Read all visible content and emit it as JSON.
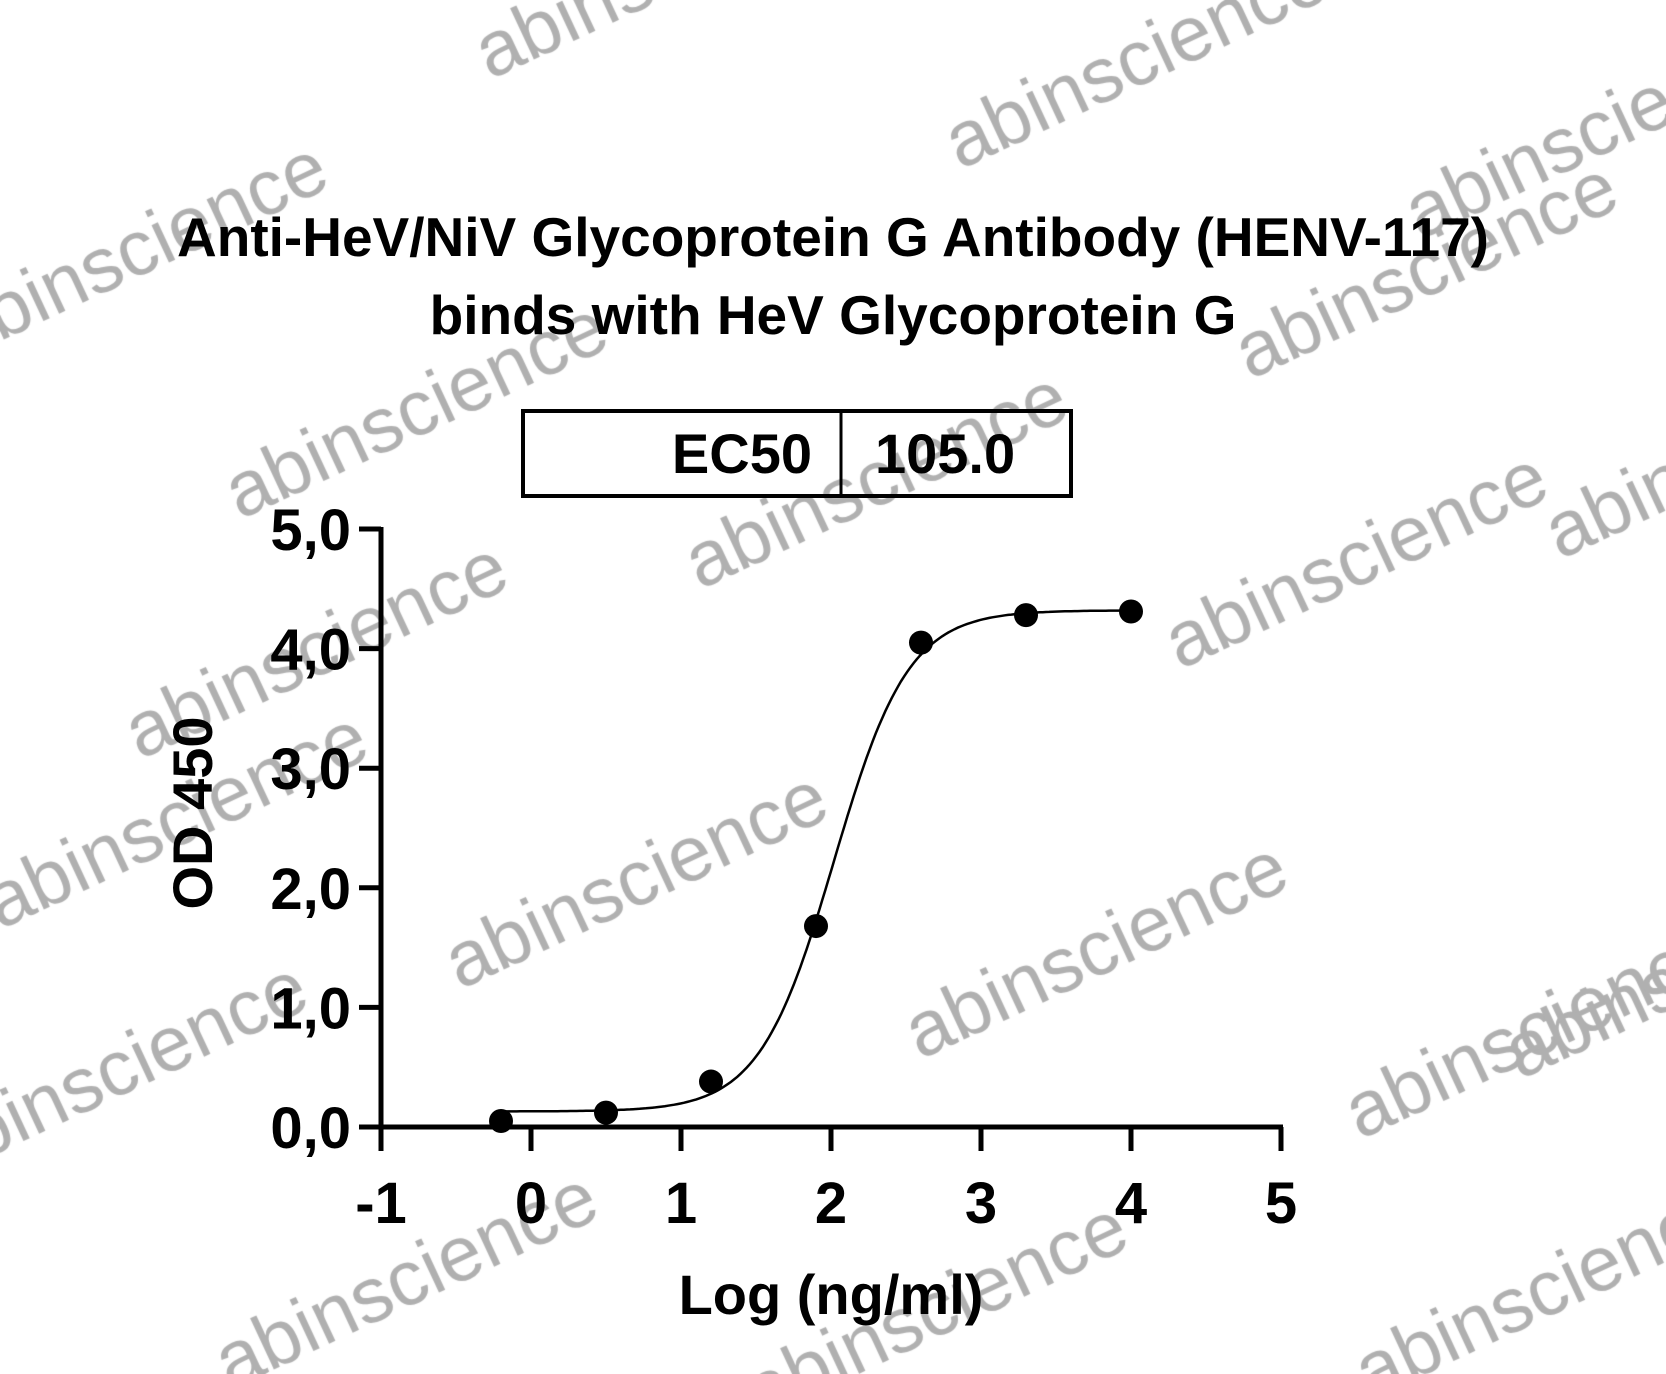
{
  "chart_data": {
    "type": "scatter",
    "title": [
      "Anti-HeV/NiV Glycoprotein G Antibody (HENV-117)",
      "binds with HeV Glycoprotein G"
    ],
    "xlabel": "Log (ng/ml)",
    "ylabel": "OD 450",
    "xlim": [
      -1,
      5
    ],
    "ylim": [
      0,
      5
    ],
    "xticks": [
      "-1",
      "0",
      "1",
      "2",
      "3",
      "4",
      "5"
    ],
    "yticks": [
      "0,0",
      "1,0",
      "2,0",
      "3,0",
      "4,0",
      "5,0"
    ],
    "grid": false,
    "points": {
      "x": [
        -0.2,
        0.5,
        1.2,
        1.9,
        2.6,
        3.3,
        4.0
      ],
      "y": [
        0.05,
        0.12,
        0.38,
        1.68,
        4.05,
        4.28,
        4.31
      ]
    },
    "fit_curve": {
      "model": "4PL",
      "bottom": 0.13,
      "top": 4.32,
      "logEC50": 2.02,
      "hill": 1.75,
      "x_range": [
        -0.2,
        4.0
      ]
    },
    "annotation_table": {
      "label": "EC50",
      "value": "105.0"
    },
    "colors": {
      "points": "#000000",
      "curve": "#000000",
      "watermark": "#b0b0b0"
    }
  },
  "watermark": "abinscience"
}
